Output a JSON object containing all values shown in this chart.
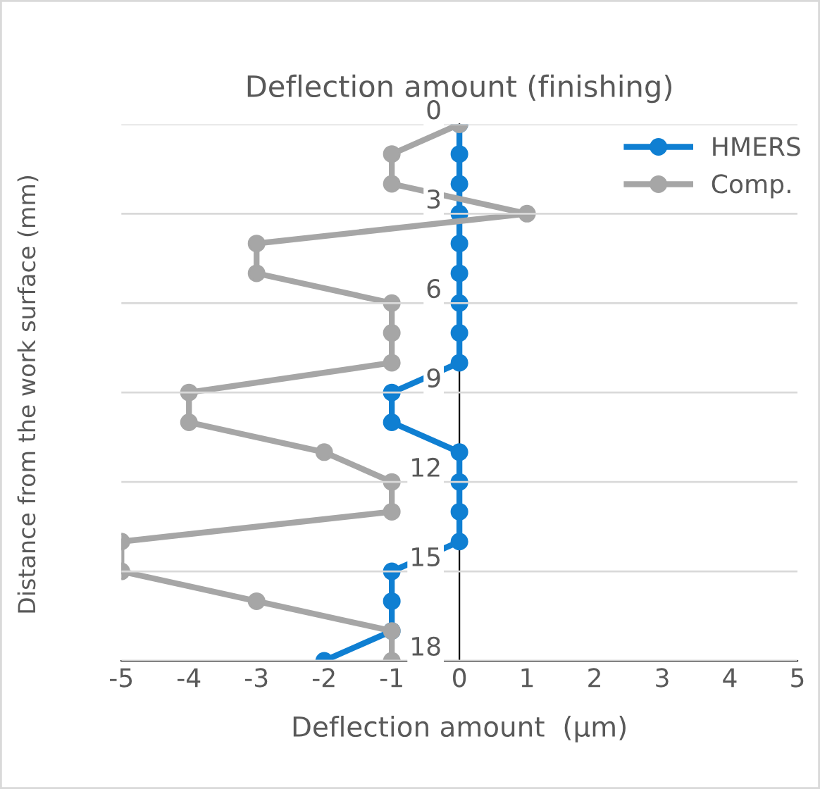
{
  "chart_data": {
    "type": "line",
    "title": "Deflection amount (finishing)",
    "xlabel": "Deflection amount  (μm)",
    "ylabel": "Distance from the work surface (mm)",
    "series": [
      {
        "name": "HMERS",
        "color": "#0f7fd2",
        "x": [
          0,
          0,
          0,
          0,
          0,
          0,
          0,
          0,
          0,
          -1,
          -1,
          0,
          0,
          0,
          0,
          -1,
          -1,
          -1,
          -2
        ],
        "values": [
          0,
          1,
          2,
          3,
          4,
          5,
          6,
          7,
          8,
          9,
          10,
          11,
          12,
          13,
          14,
          15,
          16,
          17,
          18
        ]
      },
      {
        "name": "Comp.",
        "color": "#a6a6a6",
        "x": [
          0,
          -1,
          -1,
          1,
          -3,
          -3,
          -1,
          -1,
          -1,
          -4,
          -4,
          -2,
          -1,
          -1,
          -5,
          -5,
          -3,
          -1,
          -1
        ],
        "values": [
          0,
          1,
          2,
          3,
          4,
          5,
          6,
          7,
          8,
          9,
          10,
          11,
          12,
          13,
          14,
          15,
          16,
          17,
          18
        ]
      }
    ],
    "xlim": [
      -5,
      5
    ],
    "xticks": [
      -5,
      -4,
      -3,
      -2,
      -1,
      0,
      1,
      2,
      3,
      4,
      5
    ],
    "ylim": [
      18,
      0
    ],
    "yticks": [
      0,
      3,
      6,
      9,
      12,
      15,
      18
    ],
    "grid": "y",
    "legend": "top right",
    "marker": "circle",
    "line_style": "solid"
  }
}
